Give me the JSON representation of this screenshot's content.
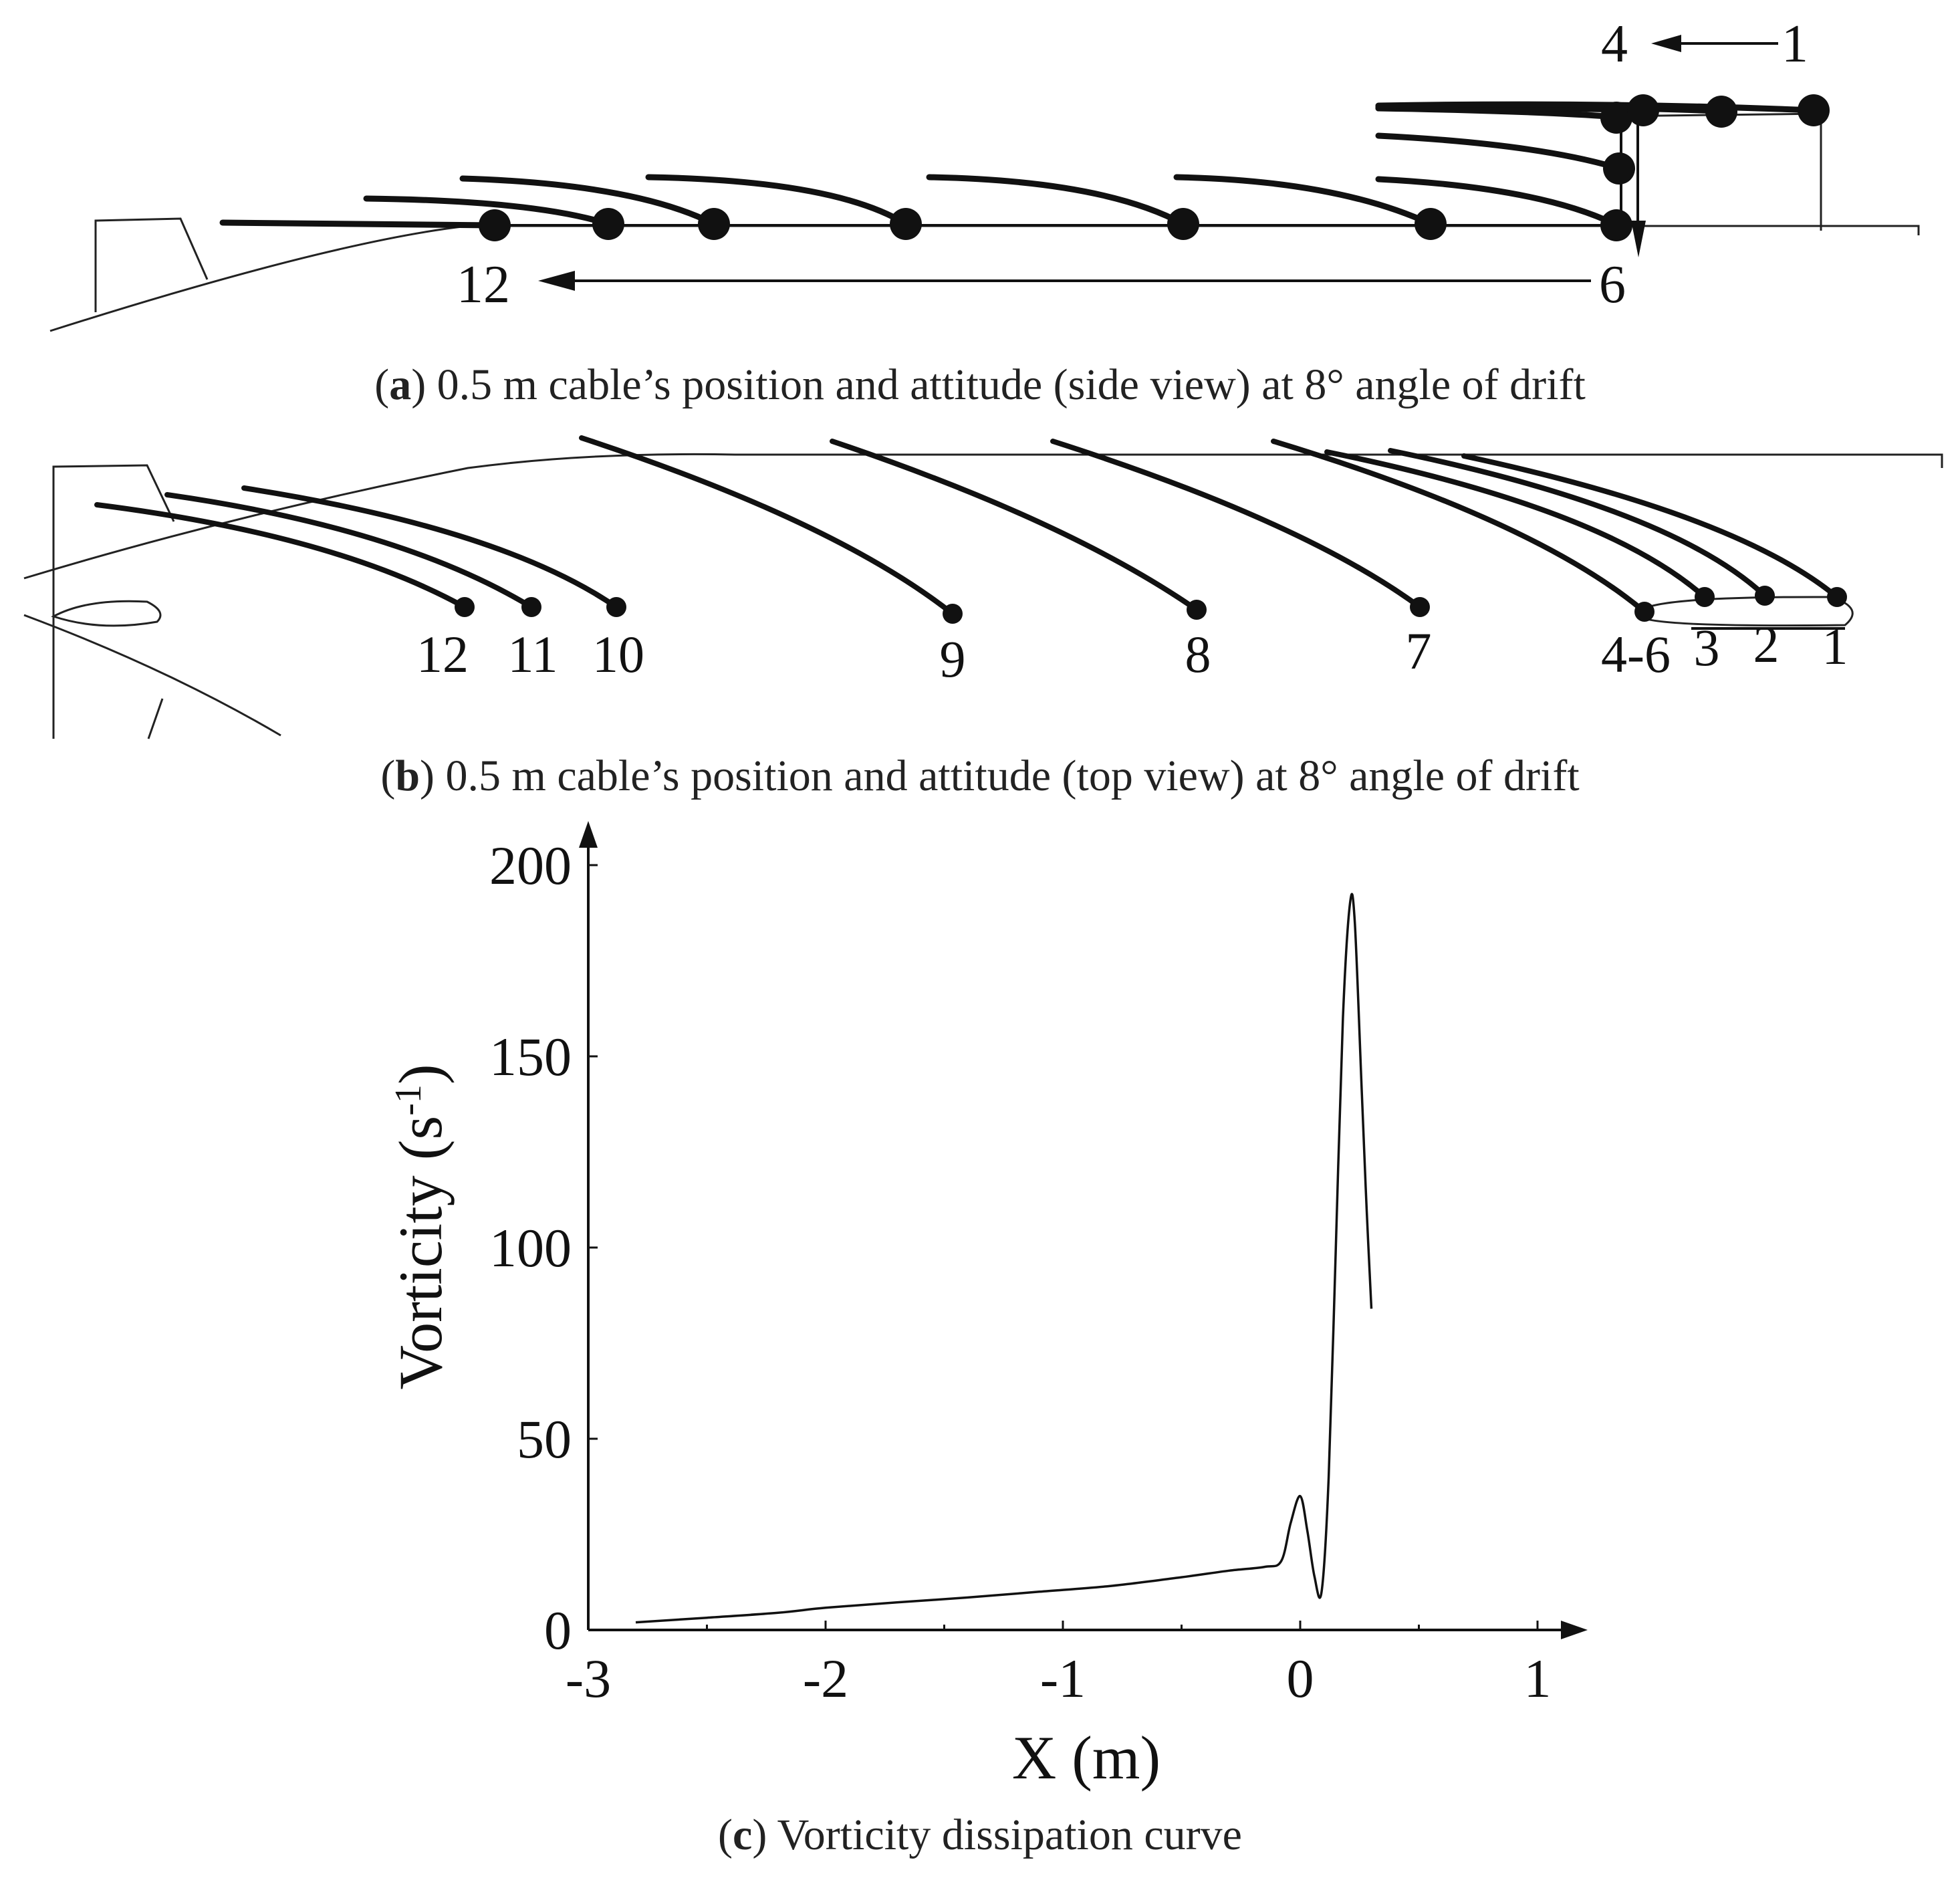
{
  "panel_a": {
    "caption_letter": "a",
    "caption_text": ") 0.5 m cable’s position and attitude (side view) at 8° angle of drift",
    "caption_open": "(",
    "label_4": "4",
    "label_1": "1",
    "label_12": "12",
    "label_6": "6"
  },
  "panel_b": {
    "caption_letter": "b",
    "caption_text": ") 0.5 m cable’s position and attitude (top view) at 8° angle of drift",
    "caption_open": "(",
    "labels": [
      "12",
      "11",
      "10",
      "9",
      "8",
      "7",
      "4-6",
      "3",
      "2",
      "1"
    ]
  },
  "panel_c": {
    "caption_letter": "c",
    "caption_text": ") Vorticity dissipation curve",
    "caption_open": "("
  },
  "chart_data": {
    "type": "line",
    "title": "",
    "xlabel": "X (m)",
    "ylabel_main": "Vorticity (s",
    "ylabel_sup": "-1",
    "ylabel_close": ")",
    "xlim": [
      -3,
      1.2
    ],
    "ylim": [
      0,
      200
    ],
    "xticks": [
      -3,
      -2,
      -1,
      0,
      1
    ],
    "xtick_labels": [
      "-3",
      "-2",
      "-1",
      "0",
      "1"
    ],
    "yticks": [
      0,
      50,
      100,
      150,
      200
    ],
    "ytick_labels": [
      "0",
      "50",
      "100",
      "150",
      "200"
    ],
    "series": [
      {
        "name": "Vorticity",
        "x": [
          -2.8,
          -2.5,
          -2.2,
          -2.0,
          -1.7,
          -1.4,
          -1.1,
          -0.8,
          -0.5,
          -0.3,
          -0.15,
          -0.08,
          -0.04,
          0.0,
          0.03,
          0.06,
          0.09,
          0.12,
          0.15,
          0.18,
          0.21,
          0.23,
          0.26,
          0.28,
          0.3
        ],
        "y": [
          2,
          3.2,
          4.5,
          5.8,
          7.2,
          8.5,
          10,
          11.5,
          13.8,
          15.5,
          16.5,
          18,
          28,
          35,
          26,
          14,
          10,
          40,
          100,
          160,
          190,
          185,
          140,
          110,
          84
        ]
      }
    ]
  }
}
